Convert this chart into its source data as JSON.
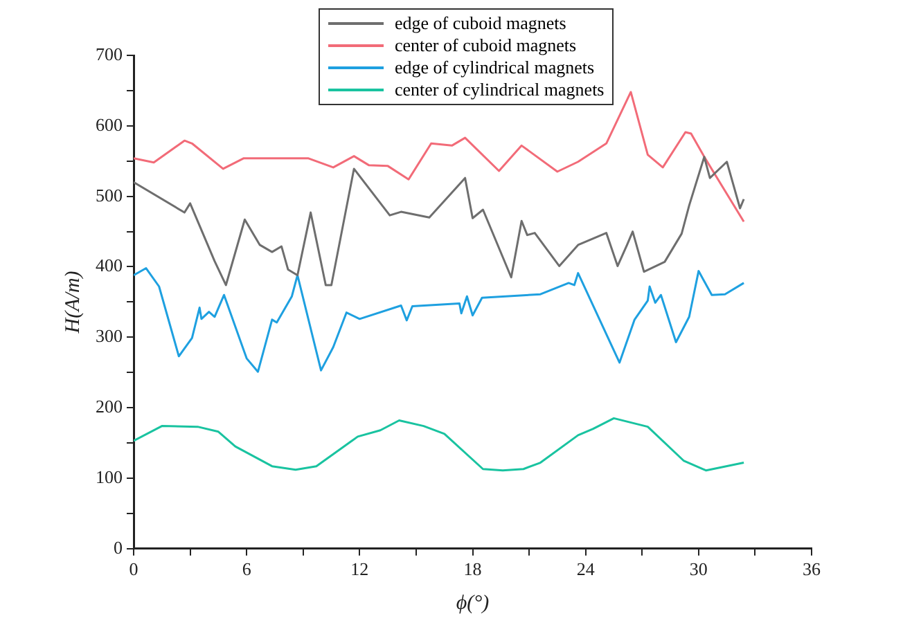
{
  "chart_data": {
    "type": "line",
    "xlabel": "ϕ(°)",
    "ylabel": "H(A/m)",
    "xlim": [
      0,
      36
    ],
    "xticks": [
      0,
      {
        "value": 3,
        "label": null
      },
      6,
      {
        "value": 9,
        "label": null
      },
      12,
      {
        "value": 15,
        "label": null
      },
      18,
      {
        "value": 21,
        "label": null
      },
      24,
      {
        "value": 27,
        "label": null
      },
      30,
      {
        "value": 33,
        "label": null
      },
      36
    ],
    "ylim": [
      0,
      700
    ],
    "yticks": [
      0,
      {
        "value": 50,
        "label": null
      },
      100,
      {
        "value": 150,
        "label": null
      },
      200,
      {
        "value": 250,
        "label": null
      },
      300,
      {
        "value": 350,
        "label": null
      },
      400,
      {
        "value": 450,
        "label": null
      },
      500,
      {
        "value": 550,
        "label": null
      },
      600,
      {
        "value": 650,
        "label": null
      },
      700
    ],
    "grid": false,
    "legend": "top",
    "marker": "none",
    "line_style": "solid",
    "series": [
      {
        "name": "edge of cuboid magnets",
        "color": "#6e6e6e",
        "x": [
          0,
          2.7,
          3.0,
          4.3,
          4.9,
          5.9,
          6.7,
          7.35,
          7.85,
          8.2,
          8.7,
          9.4,
          10.2,
          10.5,
          11.7,
          13.6,
          14.2,
          15.7,
          17.6,
          18.0,
          18.55,
          20.05,
          20.6,
          20.9,
          21.3,
          22.6,
          23.6,
          25.1,
          25.7,
          26.2,
          26.5,
          27.1,
          28.2,
          29.1,
          29.5,
          30.3,
          30.6,
          31.5,
          32.2,
          32.4
        ],
        "values": [
          520,
          477,
          490,
          408,
          374,
          467,
          431,
          421,
          429,
          396,
          388,
          477,
          374,
          374,
          539,
          473,
          478,
          470,
          526,
          469,
          481,
          385,
          465,
          445,
          448,
          401,
          431,
          448,
          401,
          431,
          450,
          393,
          407,
          447,
          487,
          556,
          526,
          549,
          483,
          496
        ]
      },
      {
        "name": "center of cuboid magnets",
        "color": "#f26b78",
        "x": [
          0,
          1.07,
          2.7,
          3.1,
          4.75,
          5.85,
          9.26,
          10.6,
          11.7,
          12.5,
          13.5,
          14.6,
          15.8,
          16.9,
          17.6,
          19.4,
          20.6,
          22.5,
          23.6,
          25.1,
          26.4,
          27.3,
          28.1,
          29.3,
          29.6,
          30.3,
          32.4
        ],
        "values": [
          554,
          548,
          579,
          575,
          539,
          554,
          554,
          541,
          557,
          544,
          543,
          524,
          575,
          572,
          583,
          536,
          572,
          535,
          549,
          575,
          648,
          559,
          541,
          591,
          589,
          556,
          464
        ]
      },
      {
        "name": "edge of cylindrical magnets",
        "color": "#1ea0e0",
        "x": [
          0,
          0.66,
          1.35,
          2.4,
          3.1,
          3.5,
          3.6,
          4.0,
          4.3,
          4.8,
          6.0,
          6.6,
          7.35,
          7.6,
          8.4,
          8.7,
          9.95,
          10.6,
          11.3,
          12.0,
          14.2,
          14.5,
          14.8,
          17.3,
          17.4,
          17.7,
          18.0,
          18.5,
          21.6,
          23.1,
          23.4,
          23.6,
          24.0,
          25.8,
          26.6,
          27.3,
          27.4,
          27.7,
          28.0,
          28.8,
          29.5,
          30.0,
          30.7,
          31.4,
          32.4
        ],
        "values": [
          388,
          398,
          372,
          273,
          299,
          342,
          326,
          336,
          329,
          360,
          270,
          251,
          325,
          321,
          358,
          388,
          253,
          286,
          335,
          326,
          345,
          324,
          344,
          348,
          334,
          358,
          331,
          356,
          361,
          377,
          374,
          391,
          368,
          264,
          325,
          352,
          372,
          349,
          360,
          293,
          329,
          394,
          360,
          361,
          377
        ]
      },
      {
        "name": "center of cylindrical magnets",
        "color": "#19c3a0",
        "x": [
          0,
          1.5,
          3.4,
          4.5,
          5.4,
          7.35,
          8.6,
          9.7,
          11.9,
          13.1,
          14.1,
          15.4,
          16.5,
          18.55,
          19.6,
          20.7,
          21.6,
          23.6,
          24.4,
          25.5,
          27.3,
          29.2,
          30.4,
          32.4
        ],
        "values": [
          153,
          174,
          173,
          166,
          145,
          117,
          112,
          117,
          159,
          168,
          182,
          174,
          163,
          113,
          111,
          113,
          122,
          161,
          170,
          185,
          173,
          125,
          111,
          122
        ]
      }
    ]
  }
}
